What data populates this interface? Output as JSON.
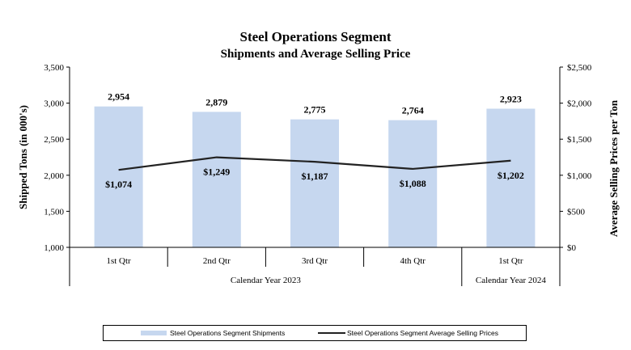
{
  "colors": {
    "bar": "#c6d7ef",
    "line": "#222222",
    "axis": "#000000"
  },
  "chart_data": {
    "type": "bar",
    "title": "Steel Operations Segment",
    "subtitle": "Shipments and Average Selling Price",
    "categories": [
      "1st Qtr",
      "2nd Qtr",
      "3rd Qtr",
      "4th Qtr",
      "1st Qtr"
    ],
    "groups": [
      {
        "label": "Calendar Year 2023",
        "span": 4
      },
      {
        "label": "Calendar Year 2024",
        "span": 1
      }
    ],
    "series": [
      {
        "name": "Steel Operations Segment Shipments",
        "type": "bar",
        "axis": "left",
        "values": [
          2954,
          2879,
          2775,
          2764,
          2923
        ],
        "labels": [
          "2,954",
          "2,879",
          "2,775",
          "2,764",
          "2,923"
        ]
      },
      {
        "name": "Steel Operations Segment Average Selling Prices",
        "type": "line",
        "axis": "right",
        "values": [
          1074,
          1249,
          1187,
          1088,
          1202
        ],
        "labels": [
          "$1,074",
          "$1,249",
          "$1,187",
          "$1,088",
          "$1,202"
        ]
      }
    ],
    "ylabel": "Shipped Tons (in 000's)",
    "ylim": [
      1000,
      3500
    ],
    "yticks": [
      1000,
      1500,
      2000,
      2500,
      3000,
      3500
    ],
    "ytick_labels": [
      "1,000",
      "1,500",
      "2,000",
      "2,500",
      "3,000",
      "3,500"
    ],
    "y2label": "Average Selling Prices per Ton",
    "y2lim": [
      0,
      2500
    ],
    "y2ticks": [
      0,
      500,
      1000,
      1500,
      2000,
      2500
    ],
    "y2tick_labels": [
      "$0",
      "$500",
      "$1,000",
      "$1,500",
      "$2,000",
      "$2,500"
    ],
    "grid": false,
    "legend_position": "bottom"
  }
}
